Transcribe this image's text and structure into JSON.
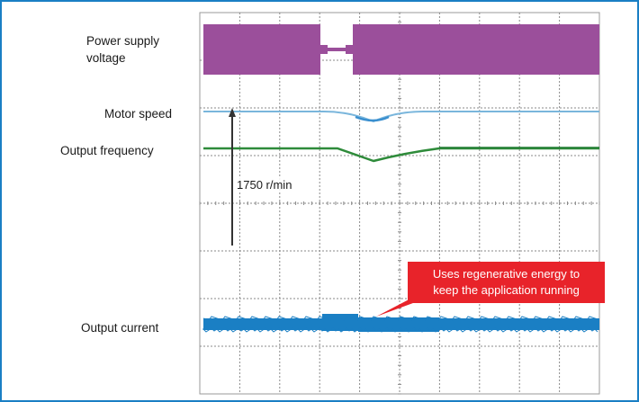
{
  "chart_data": {
    "type": "line",
    "title": "",
    "traces": [
      {
        "name": "Power supply voltage",
        "color": "#9b4f9b"
      },
      {
        "name": "Motor speed",
        "color": "#7ab6dc"
      },
      {
        "name": "Output frequency",
        "color": "#2e8b3a"
      },
      {
        "name": "Output current",
        "color": "#1a7fc4"
      }
    ],
    "labels": {
      "power": "Power supply voltage",
      "power_line1": "Power supply",
      "power_line2": "voltage",
      "speed": "Motor speed",
      "frequency": "Output frequency",
      "current": "Output current"
    },
    "scale_annotation": "1750 r/min",
    "callout": {
      "line1": "Uses regenerative energy to",
      "line2": "keep the application running",
      "color": "#e8232a"
    },
    "grid": true,
    "grid_divisions": {
      "x": 10,
      "y": 8
    }
  }
}
